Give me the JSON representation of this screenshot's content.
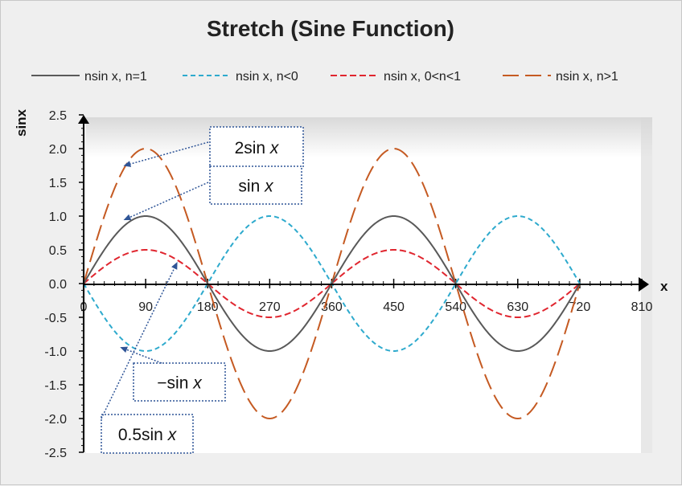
{
  "chart_data": {
    "type": "line",
    "title": "Stretch (Sine Function)",
    "xlabel": "x",
    "ylabel": "sinx",
    "xlim": [
      0,
      810
    ],
    "ylim": [
      -2.5,
      2.5
    ],
    "x_ticks": [
      0,
      90,
      180,
      270,
      360,
      450,
      540,
      630,
      720,
      810
    ],
    "y_ticks": [
      2.5,
      2.0,
      1.5,
      1.0,
      0.5,
      0.0,
      -0.5,
      -1.0,
      -1.5,
      -2.0,
      -2.5
    ],
    "x_tick_labels": [
      "0",
      "90",
      "180",
      "270",
      "360",
      "450",
      "540",
      "630",
      "720",
      "810"
    ],
    "y_tick_labels": [
      "2.5",
      "2.0",
      "1.5",
      "1.0",
      "0.5",
      "0.0",
      "-0.5",
      "-1.0",
      "-1.5",
      "-2.0",
      "-2.5"
    ],
    "x_range": [
      0,
      720
    ],
    "legend_position": "top",
    "series": [
      {
        "name": "nsin x, n=1",
        "amplitude": 1,
        "color": "#595959",
        "dash": "solid"
      },
      {
        "name": "nsin x, n<0",
        "amplitude": -1,
        "color": "#2eaacd",
        "dash": "short-dash"
      },
      {
        "name": "nsin x, 0<n<1",
        "amplitude": 0.5,
        "color": "#e0262f",
        "dash": "dash"
      },
      {
        "name": "nsin x, n>1",
        "amplitude": 2,
        "color": "#c55a22",
        "dash": "long-dash"
      }
    ],
    "annotations": [
      {
        "prefix": "2sin ",
        "var": "x",
        "point_x": 60,
        "point_y": 1.75
      },
      {
        "prefix": "sin ",
        "var": "x",
        "point_x": 60,
        "point_y": 0.95
      },
      {
        "prefix": "−sin ",
        "var": "x",
        "point_x": 55,
        "point_y": -0.95
      },
      {
        "prefix": "0.5sin ",
        "var": "x",
        "point_x": 135,
        "point_y": 0.3
      }
    ]
  }
}
